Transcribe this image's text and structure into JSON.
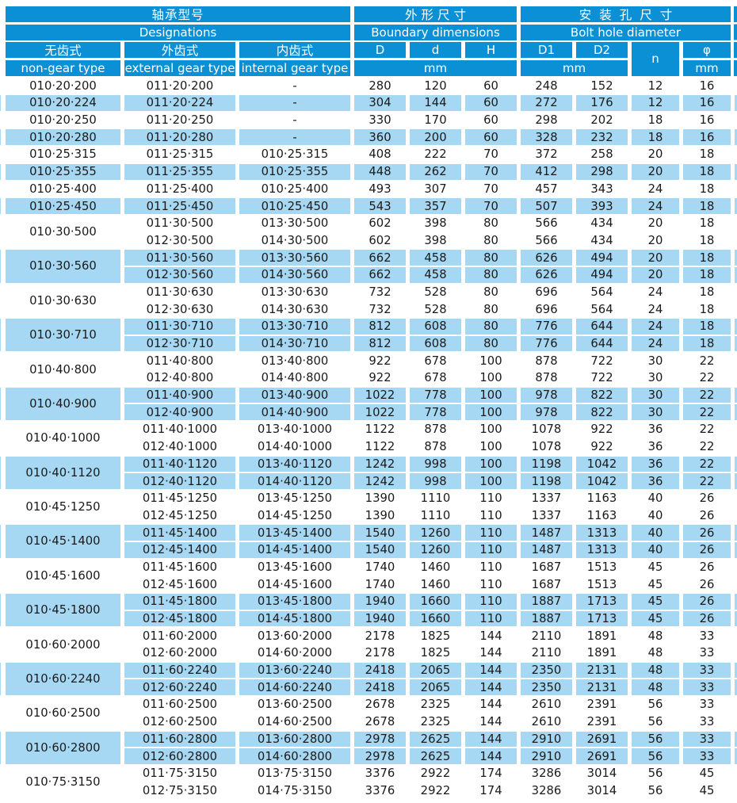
{
  "header": {
    "designations_zh": "轴承型号",
    "designations_en": "Designations",
    "boundary_zh": "外形尺寸",
    "boundary_en": "Boundary dimensions",
    "bolt_zh": "安装孔尺寸",
    "bolt_en": "Bolt hole diameter",
    "non_gear_zh": "无齿式",
    "non_gear_en": "non-gear type",
    "external_zh": "外齿式",
    "external_en": "external gear type",
    "internal_zh": "内齿式",
    "internal_en": "internal gear type",
    "col_D": "D",
    "col_d": "d",
    "col_H": "H",
    "col_D1": "D1",
    "col_D2": "D2",
    "col_n": "n",
    "col_phi": "φ",
    "unit_boundary": "mm",
    "unit_bolt": "mm",
    "unit_phi": "mm"
  },
  "colors": {
    "header_blue": "#0b90d5",
    "row_blue": "#a7d8f3",
    "row_white": "#ffffff",
    "header_text": "#ffffff",
    "data_text": "#1a1a1a"
  },
  "rows": [
    {
      "shade": "white",
      "non_gear": "010·20·200",
      "variants": [
        [
          "011·20·200",
          "-"
        ]
      ],
      "D": "280",
      "d": "120",
      "H": "60",
      "D1": "248",
      "D2": "152",
      "n": "12",
      "phi": "16"
    },
    {
      "shade": "blue",
      "non_gear": "010·20·224",
      "variants": [
        [
          "011·20·224",
          "-"
        ]
      ],
      "D": "304",
      "d": "144",
      "H": "60",
      "D1": "272",
      "D2": "176",
      "n": "12",
      "phi": "16"
    },
    {
      "shade": "white",
      "non_gear": "010·20·250",
      "variants": [
        [
          "011·20·250",
          "-"
        ]
      ],
      "D": "330",
      "d": "170",
      "H": "60",
      "D1": "298",
      "D2": "202",
      "n": "18",
      "phi": "16"
    },
    {
      "shade": "blue",
      "non_gear": "010·20·280",
      "variants": [
        [
          "011·20·280",
          "-"
        ]
      ],
      "D": "360",
      "d": "200",
      "H": "60",
      "D1": "328",
      "D2": "232",
      "n": "18",
      "phi": "16"
    },
    {
      "shade": "white",
      "non_gear": "010·25·315",
      "variants": [
        [
          "011·25·315",
          "010·25·315"
        ]
      ],
      "D": "408",
      "d": "222",
      "H": "70",
      "D1": "372",
      "D2": "258",
      "n": "20",
      "phi": "18"
    },
    {
      "shade": "blue",
      "non_gear": "010·25·355",
      "variants": [
        [
          "011·25·355",
          "010·25·355"
        ]
      ],
      "D": "448",
      "d": "262",
      "H": "70",
      "D1": "412",
      "D2": "298",
      "n": "20",
      "phi": "18"
    },
    {
      "shade": "white",
      "non_gear": "010·25·400",
      "variants": [
        [
          "011·25·400",
          "010·25·400"
        ]
      ],
      "D": "493",
      "d": "307",
      "H": "70",
      "D1": "457",
      "D2": "343",
      "n": "24",
      "phi": "18"
    },
    {
      "shade": "blue",
      "non_gear": "010·25·450",
      "variants": [
        [
          "011·25·450",
          "010·25·450"
        ]
      ],
      "D": "543",
      "d": "357",
      "H": "70",
      "D1": "507",
      "D2": "393",
      "n": "24",
      "phi": "18"
    },
    {
      "shade": "white",
      "non_gear": "010·30·500",
      "variants": [
        [
          "011·30·500",
          "013·30·500"
        ],
        [
          "012·30·500",
          "014·30·500"
        ]
      ],
      "D": "602",
      "d": "398",
      "H": "80",
      "D1": "566",
      "D2": "434",
      "n": "20",
      "phi": "18"
    },
    {
      "shade": "blue",
      "non_gear": "010·30·560",
      "variants": [
        [
          "011·30·560",
          "013·30·560"
        ],
        [
          "012·30·560",
          "014·30·560"
        ]
      ],
      "D": "662",
      "d": "458",
      "H": "80",
      "D1": "626",
      "D2": "494",
      "n": "20",
      "phi": "18"
    },
    {
      "shade": "white",
      "non_gear": "010·30·630",
      "variants": [
        [
          "011·30·630",
          "013·30·630"
        ],
        [
          "012·30·630",
          "014·30·630"
        ]
      ],
      "D": "732",
      "d": "528",
      "H": "80",
      "D1": "696",
      "D2": "564",
      "n": "24",
      "phi": "18"
    },
    {
      "shade": "blue",
      "non_gear": "010·30·710",
      "variants": [
        [
          "011·30·710",
          "013·30·710"
        ],
        [
          "012·30·710",
          "014·30·710"
        ]
      ],
      "D": "812",
      "d": "608",
      "H": "80",
      "D1": "776",
      "D2": "644",
      "n": "24",
      "phi": "18"
    },
    {
      "shade": "white",
      "non_gear": "010·40·800",
      "variants": [
        [
          "011·40·800",
          "013·40·800"
        ],
        [
          "012·40·800",
          "014·40·800"
        ]
      ],
      "D": "922",
      "d": "678",
      "H": "100",
      "D1": "878",
      "D2": "722",
      "n": "30",
      "phi": "22"
    },
    {
      "shade": "blue",
      "non_gear": "010·40·900",
      "variants": [
        [
          "011·40·900",
          "013·40·900"
        ],
        [
          "012·40·900",
          "014·40·900"
        ]
      ],
      "D": "1022",
      "d": "778",
      "H": "100",
      "D1": "978",
      "D2": "822",
      "n": "30",
      "phi": "22"
    },
    {
      "shade": "white",
      "non_gear": "010·40·1000",
      "variants": [
        [
          "011·40·1000",
          "013·40·1000"
        ],
        [
          "012·40·1000",
          "014·40·1000"
        ]
      ],
      "D": "1122",
      "d": "878",
      "H": "100",
      "D1": "1078",
      "D2": "922",
      "n": "36",
      "phi": "22"
    },
    {
      "shade": "blue",
      "non_gear": "010·40·1120",
      "variants": [
        [
          "011·40·1120",
          "013·40·1120"
        ],
        [
          "012·40·1120",
          "014·40·1120"
        ]
      ],
      "D": "1242",
      "d": "998",
      "H": "100",
      "D1": "1198",
      "D2": "1042",
      "n": "36",
      "phi": "22"
    },
    {
      "shade": "white",
      "non_gear": "010·45·1250",
      "variants": [
        [
          "011·45·1250",
          "013·45·1250"
        ],
        [
          "012·45·1250",
          "014·45·1250"
        ]
      ],
      "D": "1390",
      "d": "1110",
      "H": "110",
      "D1": "1337",
      "D2": "1163",
      "n": "40",
      "phi": "26"
    },
    {
      "shade": "blue",
      "non_gear": "010·45·1400",
      "variants": [
        [
          "011·45·1400",
          "013·45·1400"
        ],
        [
          "012·45·1400",
          "014·45·1400"
        ]
      ],
      "D": "1540",
      "d": "1260",
      "H": "110",
      "D1": "1487",
      "D2": "1313",
      "n": "40",
      "phi": "26"
    },
    {
      "shade": "white",
      "non_gear": "010·45·1600",
      "variants": [
        [
          "011·45·1600",
          "013·45·1600"
        ],
        [
          "012·45·1600",
          "014·45·1600"
        ]
      ],
      "D": "1740",
      "d": "1460",
      "H": "110",
      "D1": "1687",
      "D2": "1513",
      "n": "45",
      "phi": "26"
    },
    {
      "shade": "blue",
      "non_gear": "010·45·1800",
      "variants": [
        [
          "011·45·1800",
          "013·45·1800"
        ],
        [
          "012·45·1800",
          "014·45·1800"
        ]
      ],
      "D": "1940",
      "d": "1660",
      "H": "110",
      "D1": "1887",
      "D2": "1713",
      "n": "45",
      "phi": "26"
    },
    {
      "shade": "white",
      "non_gear": "010·60·2000",
      "variants": [
        [
          "011·60·2000",
          "013·60·2000"
        ],
        [
          "012·60·2000",
          "014·60·2000"
        ]
      ],
      "D": "2178",
      "d": "1825",
      "H": "144",
      "D1": "2110",
      "D2": "1891",
      "n": "48",
      "phi": "33"
    },
    {
      "shade": "blue",
      "non_gear": "010·60·2240",
      "variants": [
        [
          "011·60·2240",
          "013·60·2240"
        ],
        [
          "012·60·2240",
          "014·60·2240"
        ]
      ],
      "D": "2418",
      "d": "2065",
      "H": "144",
      "D1": "2350",
      "D2": "2131",
      "n": "48",
      "phi": "33"
    },
    {
      "shade": "white",
      "non_gear": "010·60·2500",
      "variants": [
        [
          "011·60·2500",
          "013·60·2500"
        ],
        [
          "012·60·2500",
          "014·60·2500"
        ]
      ],
      "D": "2678",
      "d": "2325",
      "H": "144",
      "D1": "2610",
      "D2": "2391",
      "n": "56",
      "phi": "33"
    },
    {
      "shade": "blue",
      "non_gear": "010·60·2800",
      "variants": [
        [
          "011·60·2800",
          "013·60·2800"
        ],
        [
          "012·60·2800",
          "014·60·2800"
        ]
      ],
      "D": "2978",
      "d": "2625",
      "H": "144",
      "D1": "2910",
      "D2": "2691",
      "n": "56",
      "phi": "33"
    },
    {
      "shade": "white",
      "non_gear": "010·75·3150",
      "variants": [
        [
          "011·75·3150",
          "013·75·3150"
        ],
        [
          "012·75·3150",
          "014·75·3150"
        ]
      ],
      "D": "3376",
      "d": "2922",
      "H": "174",
      "D1": "3286",
      "D2": "3014",
      "n": "56",
      "phi": "45"
    }
  ]
}
